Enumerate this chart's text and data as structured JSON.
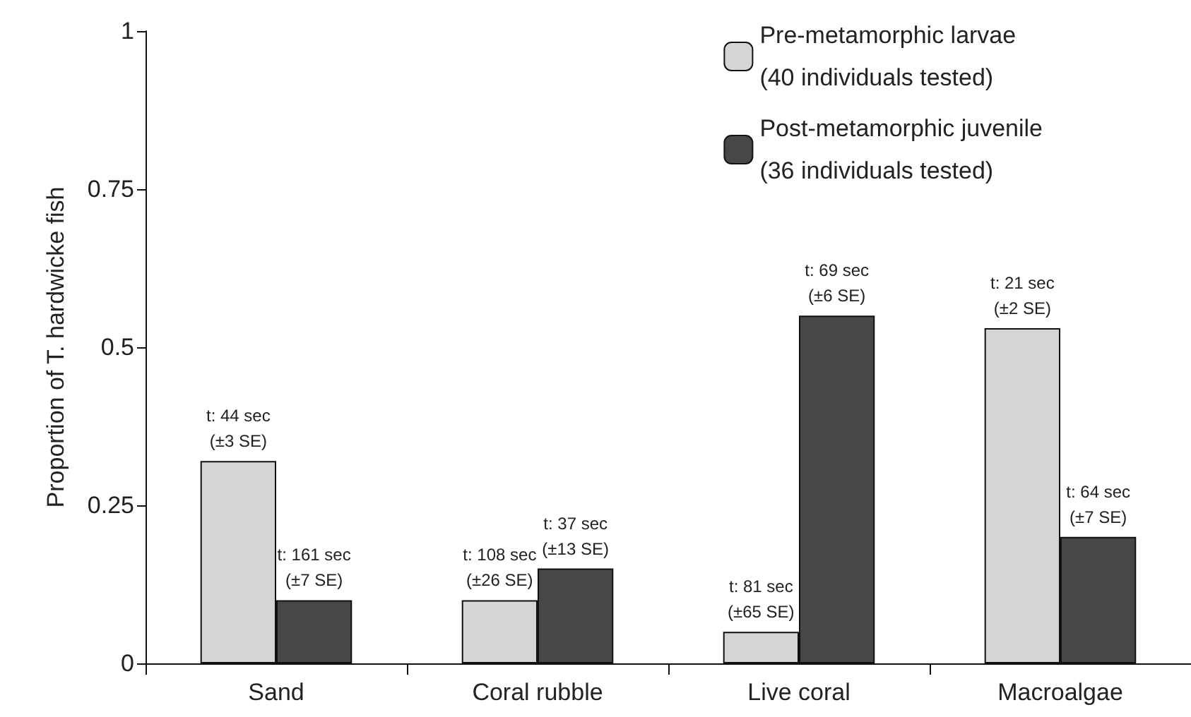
{
  "chart_data": {
    "type": "bar",
    "ylabel": "Proportion of T. hardwicke fish",
    "categories": [
      "Sand",
      "Coral rubble",
      "Live coral",
      "Macroalgae"
    ],
    "series": [
      {
        "name": "Pre-metamorphic larvae\n(40 individuals tested)",
        "color": "#d4d5d7",
        "values": [
          0.32,
          0.1,
          0.05,
          0.53
        ],
        "value_labels": [
          "t: 44 sec\n(±3 SE)",
          "t: 108 sec\n(±26 SE)",
          "t: 81 sec\n(±65 SE)",
          "t: 21 sec\n(±2 SE)"
        ]
      },
      {
        "name": "Post-metamorphic juvenile\n(36 individuals tested)",
        "color": "#474747",
        "values": [
          0.1,
          0.15,
          0.55,
          0.2
        ],
        "value_labels": [
          "t: 161 sec\n(±7 SE)",
          "t: 37 sec\n(±13 SE)",
          "t: 69 sec\n(±6 SE)",
          "t: 64 sec\n(±7 SE)"
        ]
      }
    ],
    "ylim": [
      0,
      1
    ],
    "yticks": [
      0,
      0.25,
      0.5,
      0.75,
      1
    ],
    "grid": false,
    "legend": "top right"
  }
}
